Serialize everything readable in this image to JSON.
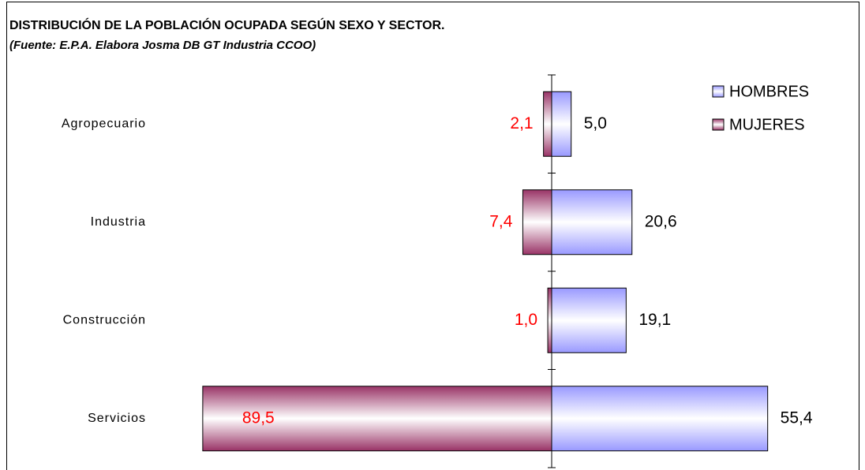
{
  "chart_data": {
    "type": "diverging-bar",
    "title": "DISTRIBUCIÓN DE LA POBLACIÓN OCUPADA SEGÚN SEXO Y SECTOR.",
    "subtitle": "(Fuente: E.P.A. Elabora Josma DB GT Industria CCOO)",
    "categories": [
      "Agropecuario",
      "Industria",
      "Construcción",
      "Servicios"
    ],
    "series": [
      {
        "name": "HOMBRES",
        "color": "#9999ff",
        "values": [
          5.0,
          20.6,
          19.1,
          55.4
        ],
        "value_labels": [
          "5,0",
          "20,6",
          "19,1",
          "55,4"
        ]
      },
      {
        "name": "MUJERES",
        "color": "#993366",
        "values": [
          2.1,
          7.4,
          1.0,
          89.5
        ],
        "value_labels": [
          "2,1",
          "7,4",
          "1,0",
          "89,5"
        ]
      }
    ],
    "legend": "top-right"
  }
}
